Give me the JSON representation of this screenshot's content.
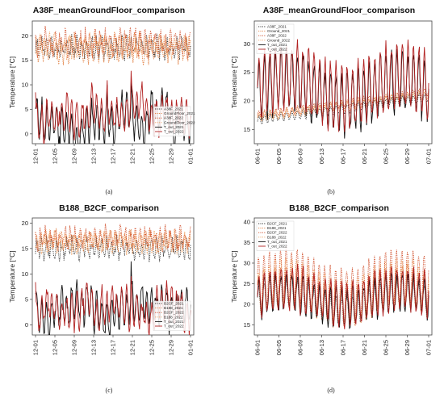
{
  "chart_data": [
    {
      "id": "a",
      "type": "line",
      "title": "A38F_meanGroundFloor_comparison",
      "ylabel": "Temperature [°C]",
      "xlabel": "",
      "sublabel": "(a)",
      "x_ticks": [
        "12-01",
        "12-05",
        "12-09",
        "12-13",
        "12-17",
        "12-21",
        "12-25",
        "12-29",
        "01-01"
      ],
      "y_ticks": [
        0,
        5,
        10,
        15,
        20
      ],
      "ylim": [
        -2,
        23
      ],
      "legend_position": "right",
      "series": [
        {
          "name": "A38F_2021",
          "color": "#333333",
          "style": "dotted",
          "level": 17.6,
          "amp": 1.6,
          "base": null,
          "pattern": "sawtooth"
        },
        {
          "name": "GroundFloor_2021",
          "color": "#e07a3a",
          "style": "dotted",
          "level": 17.2,
          "amp": 1.8,
          "pattern": "sawtooth"
        },
        {
          "name": "A38F_2022",
          "color": "#cf4a26",
          "style": "dotted",
          "level": 18.6,
          "amp": 1.9,
          "pattern": "sawtooth"
        },
        {
          "name": "GroundFloor_2022",
          "color": "#f0a060",
          "style": "dotted",
          "level": 18.0,
          "amp": 1.7,
          "pattern": "sawtooth"
        },
        {
          "name": "T_out_2021",
          "color": "#111111",
          "style": "solid",
          "level": 3.5,
          "amp": 3.2,
          "pattern": "outdoor"
        },
        {
          "name": "T_out_2022",
          "color": "#b22222",
          "style": "solid",
          "level": 4.0,
          "amp": 3.0,
          "pattern": "outdoor"
        }
      ]
    },
    {
      "id": "b",
      "type": "line",
      "title": "A38F_meanGroundFloor_comparison",
      "ylabel": "Temperature [°C]",
      "xlabel": "",
      "sublabel": "(b)",
      "x_ticks": [
        "06-01",
        "06-05",
        "06-09",
        "06-13",
        "06-17",
        "06-21",
        "06-25",
        "06-29",
        "07-01"
      ],
      "y_ticks": [
        15,
        20,
        25,
        30
      ],
      "ylim": [
        12.5,
        34
      ],
      "legend_position": "top-left",
      "series": [
        {
          "name": "A38F_2021",
          "color": "#333333",
          "style": "dotted",
          "level": 18.6,
          "amp": 0.7,
          "pattern": "trend"
        },
        {
          "name": "Ground_2021",
          "color": "#e07a3a",
          "style": "dotted",
          "level": 19.0,
          "amp": 0.6,
          "pattern": "trend"
        },
        {
          "name": "A38F_2022",
          "color": "#cf4a26",
          "style": "dotted",
          "level": 19.5,
          "amp": 0.6,
          "pattern": "trend"
        },
        {
          "name": "Ground_2022",
          "color": "#f0a060",
          "style": "dotted",
          "level": 19.2,
          "amp": 0.7,
          "pattern": "trend"
        },
        {
          "name": "T_out_2021",
          "color": "#111111",
          "style": "solid",
          "level": 21.5,
          "amp": 5.0,
          "pattern": "summer"
        },
        {
          "name": "T_out_2022",
          "color": "#b22222",
          "style": "solid",
          "level": 22.5,
          "amp": 5.5,
          "pattern": "summer"
        }
      ]
    },
    {
      "id": "c",
      "type": "line",
      "title": "B188_B2CF_comparison",
      "ylabel": "Temperature [°C]",
      "xlabel": "",
      "sublabel": "(c)",
      "x_ticks": [
        "12-01",
        "12-05",
        "12-09",
        "12-13",
        "12-17",
        "12-21",
        "12-25",
        "12-29",
        "01-01"
      ],
      "y_ticks": [
        0,
        5,
        10,
        15,
        20
      ],
      "ylim": [
        -2,
        21
      ],
      "legend_position": "bottom-right",
      "series": [
        {
          "name": "B2CF_2021",
          "color": "#333333",
          "style": "dotted",
          "level": 15.0,
          "amp": 1.5,
          "pattern": "sawtooth"
        },
        {
          "name": "B188_2021",
          "color": "#e07a3a",
          "style": "dotted",
          "level": 16.5,
          "amp": 1.4,
          "pattern": "sawtooth"
        },
        {
          "name": "B2CF_2022",
          "color": "#cf4a26",
          "style": "dotted",
          "level": 17.0,
          "amp": 1.6,
          "pattern": "sawtooth"
        },
        {
          "name": "B188_2022",
          "color": "#f0a060",
          "style": "dotted",
          "level": 16.2,
          "amp": 1.5,
          "pattern": "sawtooth"
        },
        {
          "name": "T_out_2021",
          "color": "#111111",
          "style": "solid",
          "level": 3.5,
          "amp": 3.2,
          "pattern": "outdoor"
        },
        {
          "name": "T_out_2022",
          "color": "#b22222",
          "style": "solid",
          "level": 3.0,
          "amp": 3.0,
          "pattern": "outdoor"
        }
      ]
    },
    {
      "id": "d",
      "type": "line",
      "title": "B188_B2CF_comparison",
      "ylabel": "Temperature [°C]",
      "xlabel": "",
      "sublabel": "(d)",
      "x_ticks": [
        "06-01",
        "06-05",
        "06-09",
        "06-13",
        "06-17",
        "06-21",
        "06-25",
        "06-29",
        "07-01"
      ],
      "y_ticks": [
        15,
        20,
        25,
        30,
        35,
        40
      ],
      "ylim": [
        12.5,
        41
      ],
      "legend_position": "top-left",
      "series": [
        {
          "name": "B2CF_2021",
          "color": "#333333",
          "style": "dotted",
          "level": 21.0,
          "amp": 3.5,
          "pattern": "summer-indoor"
        },
        {
          "name": "B188_2021",
          "color": "#e07a3a",
          "style": "dotted",
          "level": 22.0,
          "amp": 5.0,
          "pattern": "summer-indoor"
        },
        {
          "name": "B2CF_2022",
          "color": "#cf4a26",
          "style": "dotted",
          "level": 24.5,
          "amp": 6.5,
          "pattern": "summer-indoor"
        },
        {
          "name": "B188_2022",
          "color": "#f0a060",
          "style": "dotted",
          "level": 23.0,
          "amp": 5.5,
          "pattern": "summer-indoor"
        },
        {
          "name": "T_out_2021",
          "color": "#111111",
          "style": "solid",
          "level": 21.0,
          "amp": 4.5,
          "pattern": "summer"
        },
        {
          "name": "T_out_2022",
          "color": "#b22222",
          "style": "solid",
          "level": 22.0,
          "amp": 5.0,
          "pattern": "summer"
        }
      ]
    }
  ]
}
